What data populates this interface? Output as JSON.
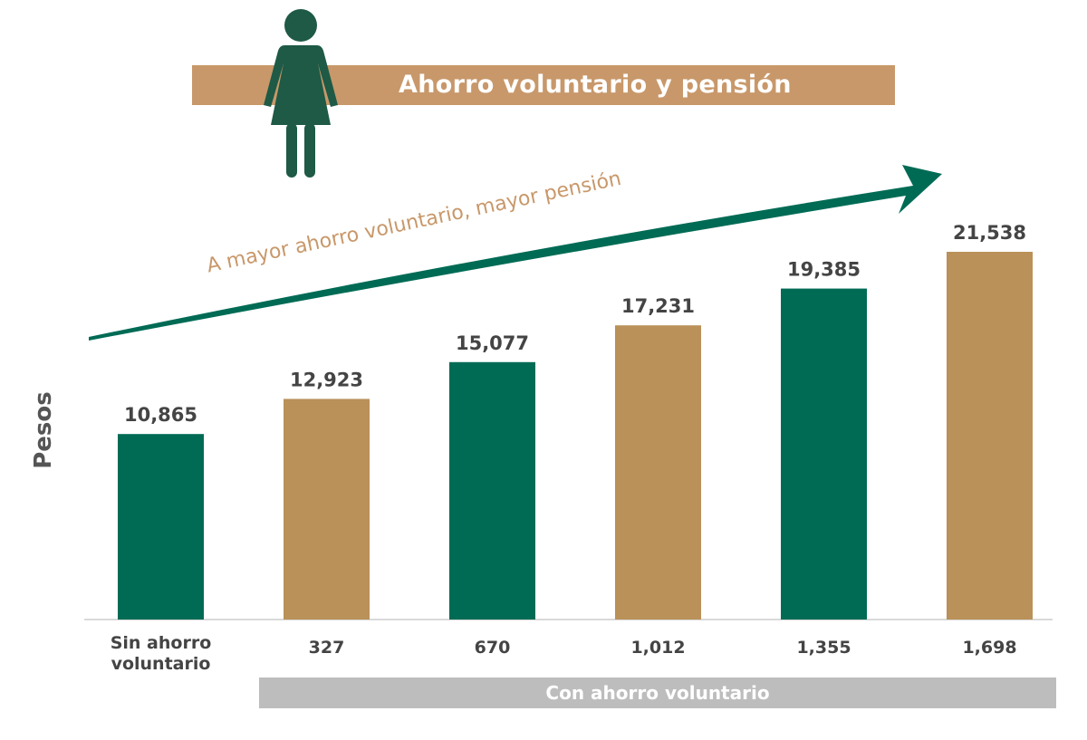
{
  "header": {
    "title": "Ahorro voluntario y pensión",
    "icon": "woman-icon"
  },
  "annotation": {
    "trend_text": "A mayor ahorro voluntario, mayor pensión",
    "arrow_icon": "trend-arrow-icon"
  },
  "footer": {
    "group_label": "Con ahorro voluntario"
  },
  "colors": {
    "green": "#006B55",
    "gold": "#B99159",
    "banner": "#C8986A",
    "icon_green": "#1E5A46",
    "group_bar": "#BDBDBD",
    "label_text": "#555555"
  },
  "chart_data": {
    "type": "bar",
    "ylabel": "Pesos",
    "xlabel": "",
    "categories": [
      "Sin ahorro voluntario",
      "327",
      "670",
      "1,012",
      "1,355",
      "1,698"
    ],
    "values": [
      10865,
      12923,
      15077,
      17231,
      19385,
      21538
    ],
    "value_labels": [
      "10,865",
      "12,923",
      "15,077",
      "17,231",
      "19,385",
      "21,538"
    ],
    "bar_colors": [
      "#006B55",
      "#B99159",
      "#006B55",
      "#B99159",
      "#006B55",
      "#B99159"
    ],
    "ylim": [
      0,
      21538
    ],
    "grid": false,
    "legend": "none"
  }
}
